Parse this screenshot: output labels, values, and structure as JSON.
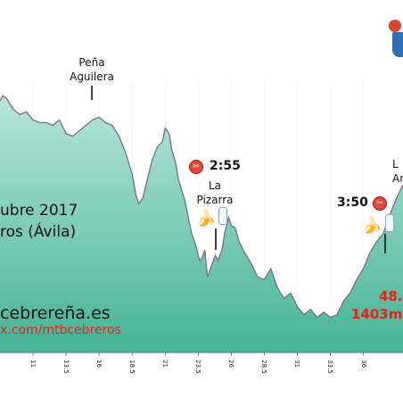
{
  "colors": {
    "fill_top": "#b7e6d8",
    "fill_bottom": "#45b396",
    "stroke": "#7a6a86",
    "accent_red": "#e0231b"
  },
  "annotations": {
    "pena_line1": "Peña",
    "pena_line2": "Aguilera",
    "time1": "2:55",
    "pizarra_line1": "La",
    "pizarra_line2": "Pizarra",
    "time2": "3:50",
    "anti_line1": "L",
    "anti_line2": "An",
    "date_text": "ubre 2017",
    "place_text": "ros (Ávila)",
    "web_text": "cebrereña.es",
    "social_text": "x.com/mtbcebreros",
    "distance_text": "48.",
    "elevation_text": "1403m"
  },
  "icons": [
    "scissors-icon",
    "banana-icon",
    "water-bottle-icon",
    "coat-of-arms-icon"
  ],
  "chart_data": {
    "type": "area",
    "title": "",
    "xlabel": "",
    "ylabel": "",
    "x_ticks": [
      "11",
      "13.5",
      "16",
      "18.5",
      "21",
      "23.5",
      "26",
      "28.5",
      "31",
      "33.5",
      "36"
    ],
    "xlim": [
      8.5,
      39
    ],
    "ylim": [
      0,
      100
    ],
    "series": [
      {
        "x": [
          8.5,
          8.7,
          9.0,
          9.5,
          10.0,
          10.5,
          11.0,
          11.5,
          12.0,
          12.5,
          13.0,
          13.5,
          14.0,
          14.5,
          15.0,
          15.5,
          16.0,
          16.5,
          17.0,
          17.5,
          18.0,
          18.5,
          18.8,
          19.0,
          19.3,
          19.6,
          20.0,
          20.4,
          20.8,
          21.0,
          21.3,
          21.5,
          21.8,
          22.0,
          22.5,
          23.0,
          23.3,
          23.6,
          23.8,
          24.0,
          24.2,
          24.5,
          24.8,
          25.0,
          25.3,
          25.5,
          25.8,
          26.0,
          26.3,
          26.6,
          27.0,
          27.5,
          28.0,
          28.5,
          29.0,
          29.5,
          30.0,
          30.5,
          31.0,
          31.5,
          32.0,
          32.5,
          33.0,
          33.5,
          34.0,
          34.5,
          35.0,
          35.5,
          36.0,
          36.5,
          37.0,
          37.5,
          38.0,
          38.5,
          39.0
        ],
        "y": [
          93,
          95,
          94,
          90,
          88,
          89,
          86,
          85,
          85,
          84,
          86,
          81,
          80,
          82,
          84,
          86,
          87,
          85,
          84,
          80,
          74,
          66,
          58,
          55,
          57,
          63,
          71,
          76,
          78,
          83,
          81,
          75,
          70,
          64,
          56,
          44,
          40,
          34,
          35,
          38,
          28,
          32,
          36,
          34,
          38,
          44,
          50,
          47,
          46,
          41,
          37,
          33,
          28,
          27,
          31,
          24,
          20,
          22,
          17,
          14,
          16,
          13,
          15,
          13,
          14,
          19,
          22,
          27,
          31,
          37,
          41,
          44,
          51,
          57,
          62
        ]
      }
    ]
  }
}
